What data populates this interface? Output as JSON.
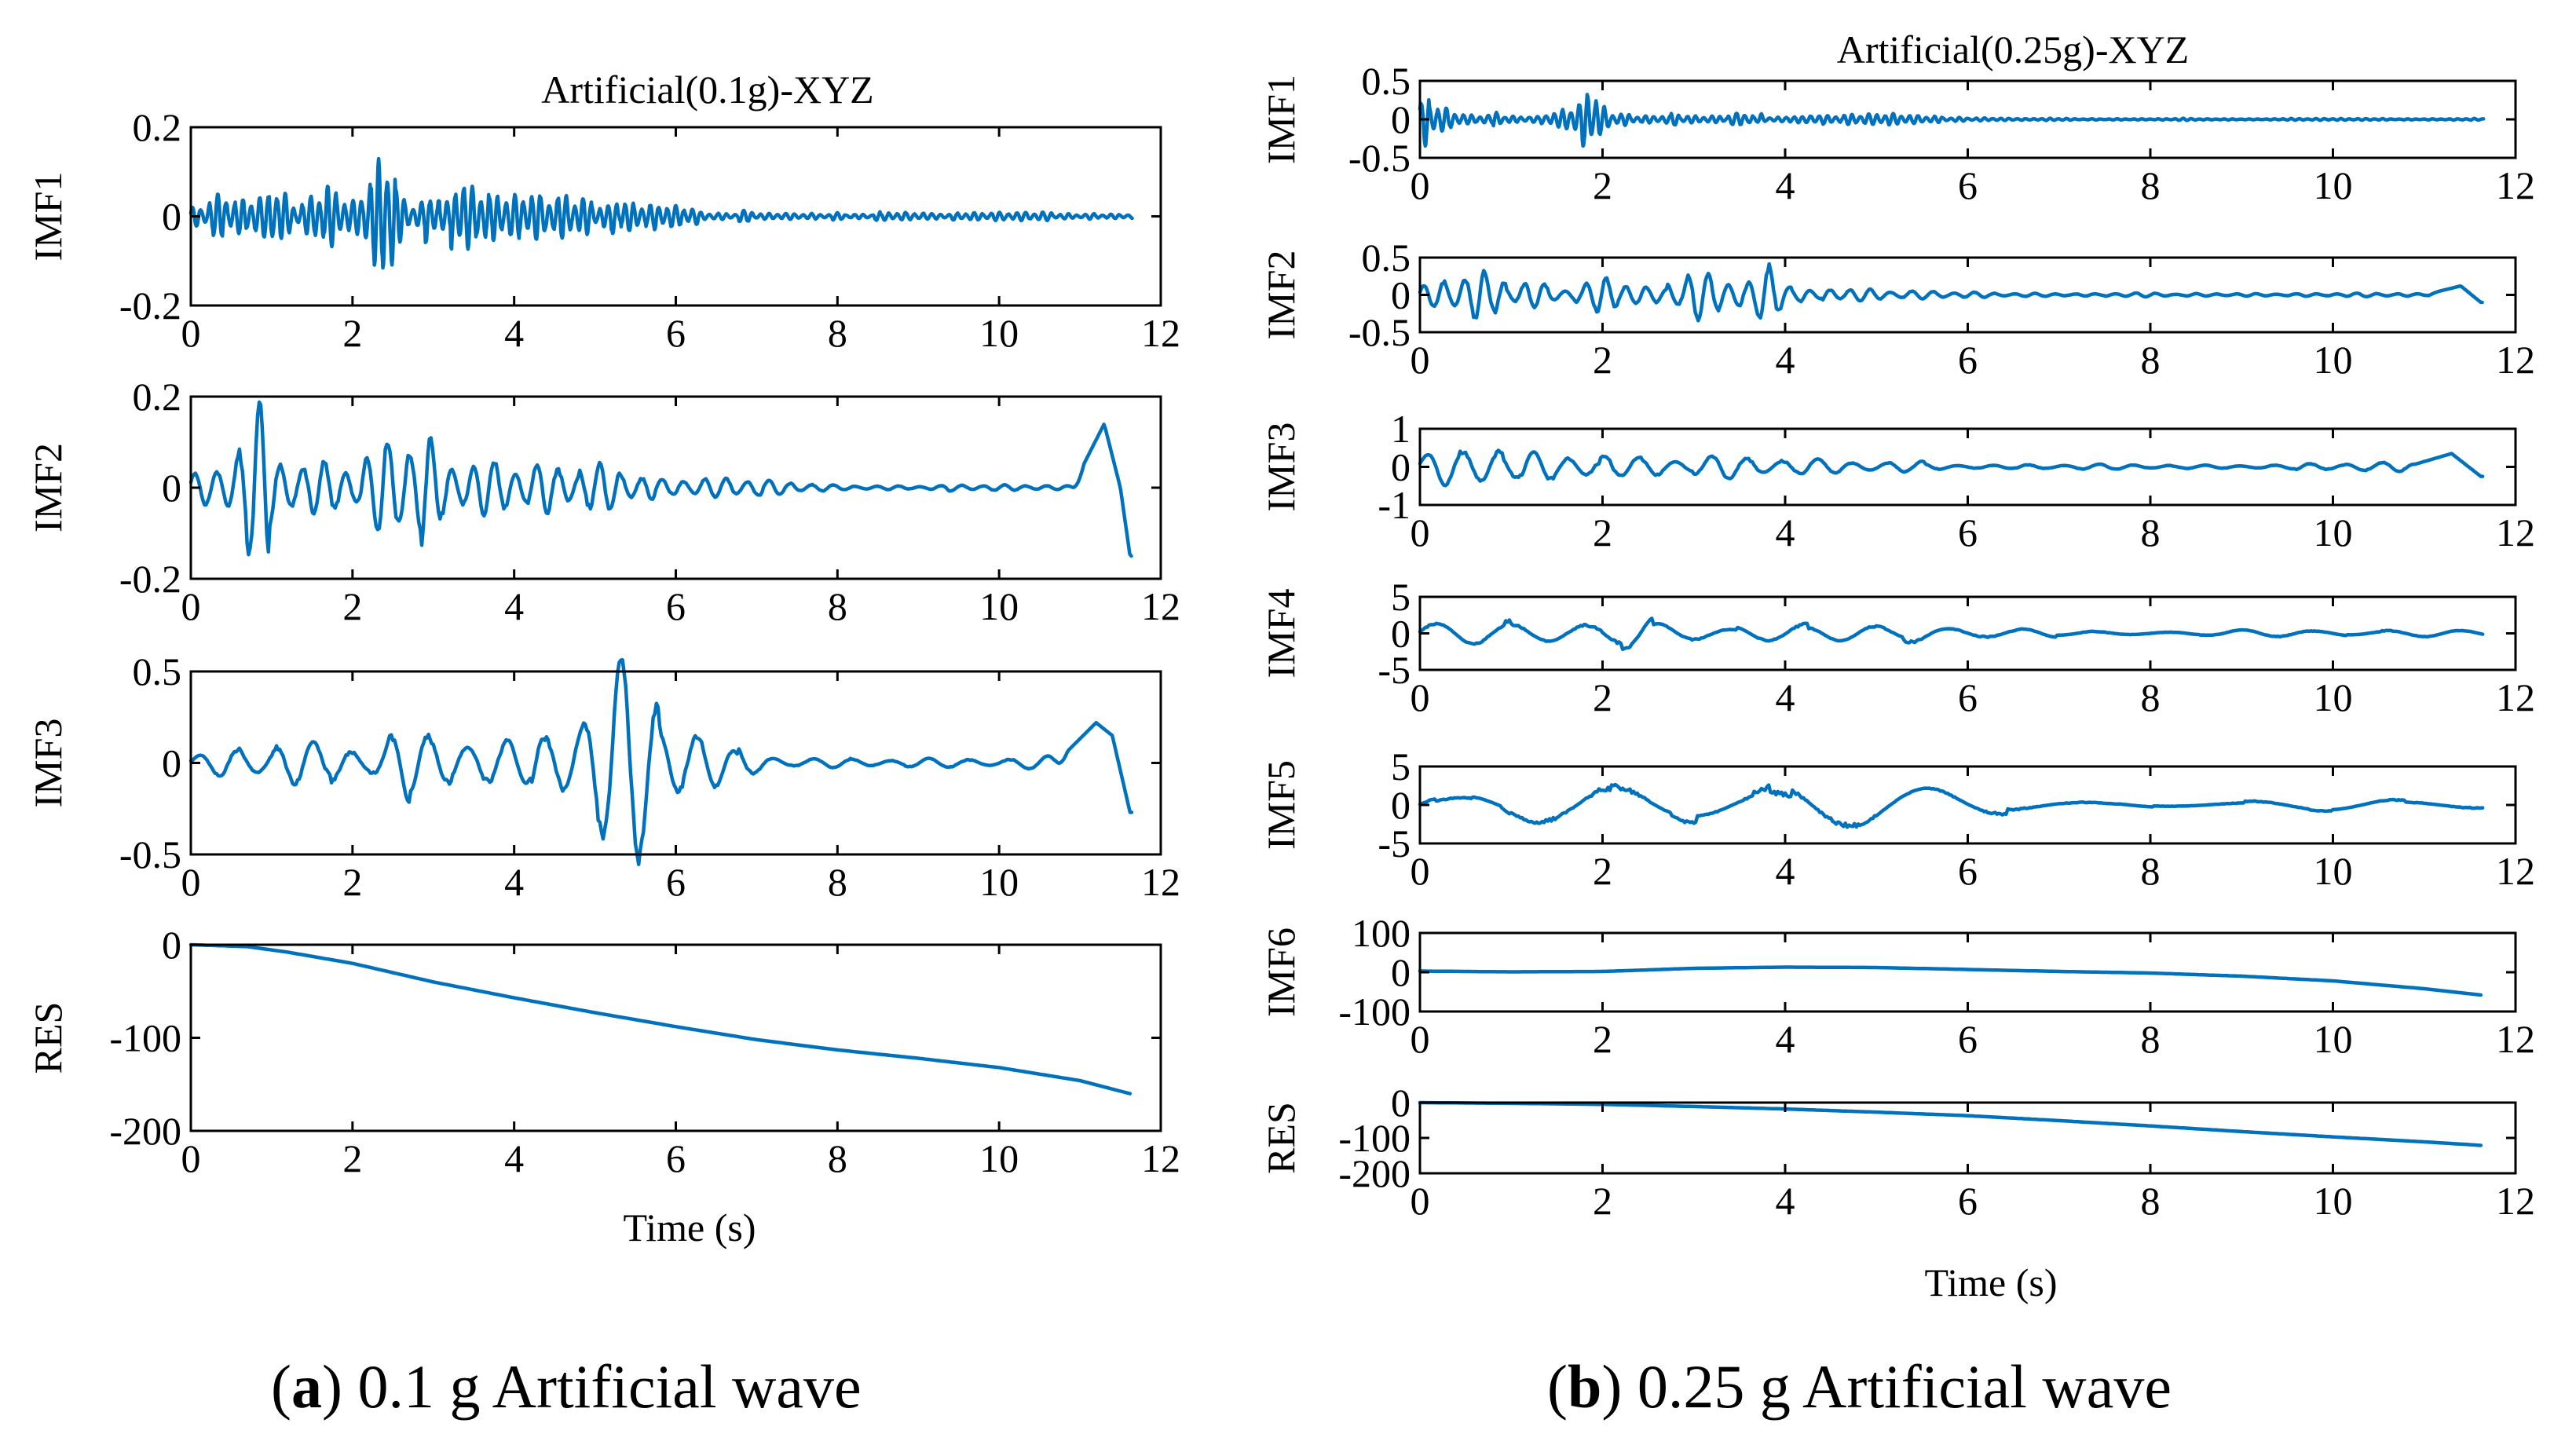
{
  "colors": {
    "line": "#0072BD",
    "axes": "#000000",
    "background": "#ffffff"
  },
  "chart_data": [
    {
      "type": "line",
      "id": "a",
      "title": "Artificial(0.1g)-XYZ",
      "xlabel": "Time (s)",
      "caption_letter": "a",
      "caption_text": ") 0.1 g Artificial wave",
      "duration": 11.65,
      "subplots": [
        {
          "ylabel": "IMF1",
          "xlim": [
            0,
            12
          ],
          "ylim": [
            -0.2,
            0.2
          ],
          "xticks": [
            0,
            2,
            4,
            6,
            8,
            10,
            12
          ],
          "yticks": [
            -0.2,
            0,
            0.2
          ],
          "ytick_labels": [
            "-0.2",
            "0",
            "0.2"
          ],
          "signal": {
            "kind": "osc",
            "seed": 11,
            "freq": 9.5,
            "amp_env": [
              [
                0,
                0.02
              ],
              [
                0.4,
                0.05
              ],
              [
                0.9,
                0.07
              ],
              [
                1.1,
                0.09
              ],
              [
                1.3,
                0.03
              ],
              [
                1.7,
                0.1
              ],
              [
                2.0,
                0.04
              ],
              [
                2.5,
                0.12
              ],
              [
                2.7,
                0.04
              ],
              [
                3.2,
                0.06
              ],
              [
                4.0,
                0.04
              ],
              [
                4.6,
                0.05
              ],
              [
                5.2,
                0.04
              ],
              [
                5.8,
                0.03
              ],
              [
                6.5,
                0.012
              ],
              [
                7.5,
                0.008
              ],
              [
                11.6,
                0.008
              ]
            ]
          }
        },
        {
          "ylabel": "IMF2",
          "xlim": [
            0,
            12
          ],
          "ylim": [
            -0.2,
            0.2
          ],
          "xticks": [
            0,
            2,
            4,
            6,
            8,
            10,
            12
          ],
          "yticks": [
            -0.2,
            0,
            0.2
          ],
          "ytick_labels": [
            "-0.2",
            "0",
            "0.2"
          ],
          "signal": {
            "kind": "osc",
            "seed": 23,
            "freq": 3.8,
            "amp_env": [
              [
                0,
                0.03
              ],
              [
                0.5,
                0.06
              ],
              [
                0.9,
                0.16
              ],
              [
                1.1,
                0.16
              ],
              [
                1.4,
                0.09
              ],
              [
                1.8,
                0.12
              ],
              [
                2.2,
                0.07
              ],
              [
                2.5,
                0.16
              ],
              [
                2.7,
                0.14
              ],
              [
                3.1,
                0.05
              ],
              [
                4.2,
                0.04
              ],
              [
                5.1,
                0.05
              ],
              [
                5.6,
                0.03
              ],
              [
                6.4,
                0.02
              ],
              [
                7.2,
                0.025
              ],
              [
                8.0,
                0.008
              ],
              [
                11.0,
                0.005
              ]
            ],
            "end_spike": [
              [
                10.9,
                0
              ],
              [
                11.3,
                0.14
              ],
              [
                11.5,
                0
              ],
              [
                11.62,
                -0.15
              ]
            ]
          }
        },
        {
          "ylabel": "IMF3",
          "xlim": [
            0,
            12
          ],
          "ylim": [
            -0.5,
            0.5
          ],
          "xticks": [
            0,
            2,
            4,
            6,
            8,
            10,
            12
          ],
          "yticks": [
            -0.5,
            0,
            0.5
          ],
          "ytick_labels": [
            "-0.5",
            "0",
            "0.5"
          ],
          "signal": {
            "kind": "osc",
            "seed": 37,
            "freq": 2.1,
            "amp_env": [
              [
                0,
                0.05
              ],
              [
                0.6,
                0.18
              ],
              [
                1.4,
                0.15
              ],
              [
                2.2,
                0.08
              ],
              [
                2.6,
                0.2
              ],
              [
                3.4,
                0.22
              ],
              [
                4.4,
                0.12
              ],
              [
                5.0,
                0.32
              ],
              [
                5.4,
                0.42
              ],
              [
                5.9,
                0.4
              ],
              [
                6.3,
                0.3
              ],
              [
                6.8,
                0.08
              ],
              [
                7.4,
                0.02
              ],
              [
                10.0,
                0.02
              ],
              [
                10.6,
                0.03
              ]
            ],
            "end_spike": [
              [
                10.7,
                0
              ],
              [
                11.2,
                0.22
              ],
              [
                11.4,
                0.15
              ],
              [
                11.62,
                -0.27
              ]
            ]
          }
        },
        {
          "ylabel": "RES",
          "xlim": [
            0,
            12
          ],
          "ylim": [
            -200,
            0
          ],
          "xticks": [
            0,
            2,
            4,
            6,
            8,
            10,
            12
          ],
          "yticks": [
            -200,
            -100,
            0
          ],
          "ytick_labels": [
            "-200",
            "-100",
            "0"
          ],
          "signal": {
            "kind": "trend",
            "points": [
              [
                0,
                0
              ],
              [
                0.7,
                -2
              ],
              [
                1.2,
                -8
              ],
              [
                2,
                -20
              ],
              [
                3,
                -40
              ],
              [
                4,
                -57
              ],
              [
                5,
                -73
              ],
              [
                6,
                -88
              ],
              [
                7,
                -102
              ],
              [
                8,
                -113
              ],
              [
                9,
                -122
              ],
              [
                10,
                -132
              ],
              [
                11,
                -146
              ],
              [
                11.62,
                -160
              ]
            ]
          }
        }
      ]
    },
    {
      "type": "line",
      "id": "b",
      "title": "Artificial(0.25g)-XYZ",
      "xlabel": "Time (s)",
      "caption_letter": "b",
      "caption_text": ") 0.25 g Artificial wave",
      "duration": 11.65,
      "subplots": [
        {
          "ylabel": "IMF1",
          "xlim": [
            0,
            12
          ],
          "ylim": [
            -0.5,
            0.5
          ],
          "xticks": [
            0,
            2,
            4,
            6,
            8,
            10,
            12
          ],
          "yticks": [
            -0.5,
            0,
            0.5
          ],
          "ytick_labels": [
            "-0.5",
            "0",
            "0.5"
          ],
          "signal": {
            "kind": "osc",
            "seed": 41,
            "freq": 11,
            "amp_env": [
              [
                0,
                0.28
              ],
              [
                0.2,
                0.25
              ],
              [
                0.5,
                0.08
              ],
              [
                1.5,
                0.06
              ],
              [
                1.85,
                0.35
              ],
              [
                2.1,
                0.08
              ],
              [
                3.5,
                0.06
              ],
              [
                4.0,
                0.05
              ],
              [
                5.2,
                0.07
              ],
              [
                5.5,
                0.04
              ],
              [
                6.4,
                0.01
              ],
              [
                11.6,
                0.01
              ]
            ]
          }
        },
        {
          "ylabel": "IMF2",
          "xlim": [
            0,
            12
          ],
          "ylim": [
            -0.5,
            0.5
          ],
          "xticks": [
            0,
            2,
            4,
            6,
            8,
            10,
            12
          ],
          "yticks": [
            -0.5,
            0,
            0.5
          ],
          "ytick_labels": [
            "-0.5",
            "0",
            "0.5"
          ],
          "signal": {
            "kind": "osc",
            "seed": 53,
            "freq": 4.5,
            "amp_env": [
              [
                0,
                0.12
              ],
              [
                0.6,
                0.3
              ],
              [
                1.1,
                0.22
              ],
              [
                1.6,
                0.12
              ],
              [
                2.1,
                0.3
              ],
              [
                2.5,
                0.12
              ],
              [
                3.0,
                0.25
              ],
              [
                3.6,
                0.2
              ],
              [
                3.85,
                0.45
              ],
              [
                4.1,
                0.1
              ],
              [
                5.2,
                0.05
              ],
              [
                6.5,
                0.02
              ],
              [
                11.0,
                0.02
              ]
            ],
            "end_spike": [
              [
                11.0,
                0
              ],
              [
                11.4,
                0.12
              ],
              [
                11.62,
                -0.1
              ]
            ]
          }
        },
        {
          "ylabel": "IMF3",
          "xlim": [
            0,
            12
          ],
          "ylim": [
            -1,
            1
          ],
          "xticks": [
            0,
            2,
            4,
            6,
            8,
            10,
            12
          ],
          "yticks": [
            -1,
            0,
            1
          ],
          "ytick_labels": [
            "-1",
            "0",
            "1"
          ],
          "signal": {
            "kind": "osc",
            "seed": 67,
            "freq": 2.6,
            "amp_env": [
              [
                0,
                0.3
              ],
              [
                0.7,
                0.6
              ],
              [
                1.2,
                0.3
              ],
              [
                2.0,
                0.3
              ],
              [
                2.6,
                0.5
              ],
              [
                3.0,
                0.3
              ],
              [
                4.0,
                0.2
              ],
              [
                5.2,
                0.12
              ],
              [
                6.5,
                0.05
              ],
              [
                10.0,
                0.1
              ]
            ],
            "end_spike": [
              [
                10.8,
                0
              ],
              [
                11.3,
                0.35
              ],
              [
                11.62,
                -0.25
              ]
            ]
          }
        },
        {
          "ylabel": "IMF4",
          "xlim": [
            0,
            12
          ],
          "ylim": [
            -5,
            5
          ],
          "xticks": [
            0,
            2,
            4,
            6,
            8,
            10,
            12
          ],
          "yticks": [
            -5,
            0,
            5
          ],
          "ytick_labels": [
            "-5",
            "0",
            "5"
          ],
          "signal": {
            "kind": "osc",
            "seed": 79,
            "freq": 1.25,
            "amp_env": [
              [
                0,
                1.5
              ],
              [
                1.0,
                2.0
              ],
              [
                2.2,
                2.4
              ],
              [
                3.0,
                1.5
              ],
              [
                4.2,
                1.2
              ],
              [
                5.5,
                1.4
              ],
              [
                6.2,
                0.6
              ],
              [
                8.0,
                0.3
              ],
              [
                10.5,
                0.5
              ],
              [
                11.6,
                0.4
              ]
            ]
          }
        },
        {
          "ylabel": "IMF5",
          "xlim": [
            0,
            12
          ],
          "ylim": [
            -5,
            5
          ],
          "xticks": [
            0,
            2,
            4,
            6,
            8,
            10,
            12
          ],
          "yticks": [
            -5,
            0,
            5
          ],
          "ytick_labels": [
            "-5",
            "0",
            "5"
          ],
          "signal": {
            "kind": "osc",
            "seed": 97,
            "freq": 0.58,
            "amp_env": [
              [
                0,
                1.5
              ],
              [
                1.0,
                2.0
              ],
              [
                2.2,
                3.2
              ],
              [
                3.8,
                3.2
              ],
              [
                5.0,
                2.0
              ],
              [
                6.5,
                1.0
              ],
              [
                8.0,
                0.5
              ],
              [
                10.0,
                0.6
              ],
              [
                11.6,
                0.9
              ]
            ]
          }
        },
        {
          "ylabel": "IMF6",
          "xlim": [
            0,
            12
          ],
          "ylim": [
            -100,
            100
          ],
          "xticks": [
            0,
            2,
            4,
            6,
            8,
            10,
            12
          ],
          "yticks": [
            -100,
            0,
            100
          ],
          "ytick_labels": [
            "-100",
            "0",
            "100"
          ],
          "signal": {
            "kind": "trend",
            "points": [
              [
                0,
                3
              ],
              [
                1,
                1
              ],
              [
                2,
                2
              ],
              [
                3,
                10
              ],
              [
                4,
                13
              ],
              [
                5,
                12
              ],
              [
                6,
                7
              ],
              [
                7,
                2
              ],
              [
                8,
                -2
              ],
              [
                9,
                -10
              ],
              [
                10,
                -22
              ],
              [
                11,
                -42
              ],
              [
                11.62,
                -58
              ]
            ]
          }
        },
        {
          "ylabel": "RES",
          "xlim": [
            0,
            12
          ],
          "ylim": [
            -200,
            0
          ],
          "xticks": [
            0,
            2,
            4,
            6,
            8,
            10,
            12
          ],
          "yticks": [
            -200,
            -100,
            0
          ],
          "ytick_labels": [
            "-200",
            "-100",
            "0"
          ],
          "signal": {
            "kind": "trend",
            "points": [
              [
                0,
                0
              ],
              [
                1,
                -2
              ],
              [
                2,
                -5
              ],
              [
                3,
                -11
              ],
              [
                4,
                -18
              ],
              [
                5,
                -27
              ],
              [
                6,
                -37
              ],
              [
                7,
                -51
              ],
              [
                8,
                -66
              ],
              [
                9,
                -82
              ],
              [
                10,
                -97
              ],
              [
                11,
                -111
              ],
              [
                11.62,
                -121
              ]
            ]
          }
        }
      ]
    }
  ]
}
